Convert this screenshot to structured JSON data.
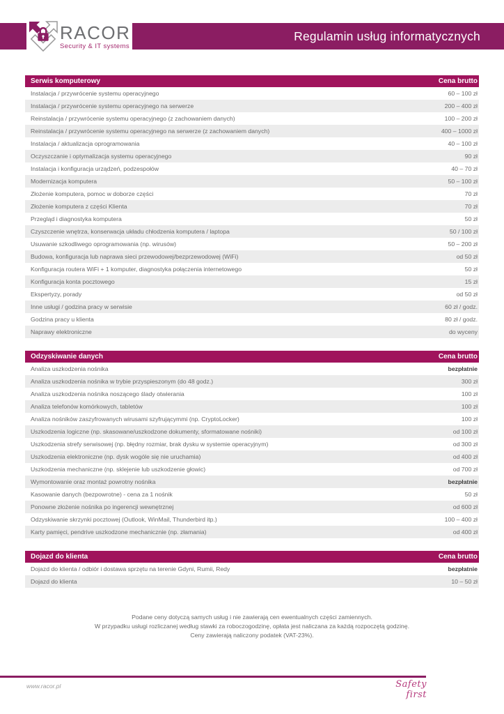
{
  "colors": {
    "header_bar": "#8b1d62",
    "table_header": "#a0135c",
    "row_alt": "#ececec"
  },
  "header": {
    "logo_text": "RACOR",
    "logo_subtitle": "Security & IT systems",
    "title": "Regulamin usług informatycznych"
  },
  "price_column_header": "Cena brutto",
  "sections": [
    {
      "title": "Serwis komputerowy",
      "rows": [
        {
          "label": "Instalacja / przywrócenie systemu operacyjnego",
          "price": "60 – 100 zł"
        },
        {
          "label": "Instalacja / przywrócenie systemu operacyjnego na serwerze",
          "price": "200 – 400 zł"
        },
        {
          "label": "Reinstalacja / przywrócenie systemu operacyjnego (z zachowaniem danych)",
          "price": "100 – 200 zł"
        },
        {
          "label": "Reinstalacja / przywrócenie systemu operacyjnego na serwerze (z zachowaniem danych)",
          "price": "400 – 1000 zł"
        },
        {
          "label": "Instalacja / aktualizacja oprogramowania",
          "price": "40 – 100 zł"
        },
        {
          "label": "Oczyszczanie i optymalizacja systemu operacyjnego",
          "price": "90 zł"
        },
        {
          "label": "Instalacja i konfiguracja urządzeń, podzespołów",
          "price": "40 – 70 zł"
        },
        {
          "label": "Modernizacja komputera",
          "price": "50 – 100 zł"
        },
        {
          "label": "Złożenie komputera, pomoc w doborze części",
          "price": "70 zł"
        },
        {
          "label": "Złożenie komputera z części Klienta",
          "price": "70 zł"
        },
        {
          "label": "Przegląd i diagnostyka komputera",
          "price": "50 zł"
        },
        {
          "label": "Czyszczenie wnętrza, konserwacja układu chłodzenia komputera / laptopa",
          "price": "50 / 100 zł"
        },
        {
          "label": "Usuwanie szkodliwego oprogramowania (np. wirusów)",
          "price": "50 – 200 zł"
        },
        {
          "label": "Budowa, konfiguracja lub naprawa sieci przewodowej/bezprzewodowej (WiFi)",
          "price": "od 50 zł"
        },
        {
          "label": "Konfiguracja routera WiFi + 1 komputer, diagnostyka połączenia internetowego",
          "price": "50 zł"
        },
        {
          "label": "Konfiguracja konta pocztowego",
          "price": "15 zł"
        },
        {
          "label": "Ekspertyzy, porady",
          "price": "od 50 zł"
        },
        {
          "label": "Inne usługi / godzina pracy w serwisie",
          "price": "60 zł / godz."
        },
        {
          "label": "Godzina pracy u klienta",
          "price": "80 zł / godz."
        },
        {
          "label": "Naprawy elektroniczne",
          "price": "do wyceny"
        }
      ]
    },
    {
      "title": "Odzyskiwanie danych",
      "rows": [
        {
          "label": "Analiza uszkodzenia nośnika",
          "price": "bezpłatnie",
          "strong": true
        },
        {
          "label": "Analiza uszkodzenia nośnika w trybie przyspieszonym (do 48 godz.)",
          "price": "300 zł"
        },
        {
          "label": "Analiza uszkodzenia nośnika noszącego ślady otwierania",
          "price": "100 zł"
        },
        {
          "label": "Analiza telefonów komórkowych, tabletów",
          "price": "100 zł"
        },
        {
          "label": "Analiza nośników zaszyfrowanych wirusami szyfrującymmi (np. CryptoLocker)",
          "price": "100 zł"
        },
        {
          "label": "Uszkodzenia logiczne (np. skasowane/uszkodzone dokumenty, sformatowane nośniki)",
          "price": "od 100 zł"
        },
        {
          "label": "Uszkodzenia strefy serwisowej (np. błędny rozmiar, brak dysku w systemie operacyjnym)",
          "price": "od 300 zł"
        },
        {
          "label": "Uszkodzenia elektroniczne (np. dysk wogóle się nie uruchamia)",
          "price": "od 400 zł"
        },
        {
          "label": "Uszkodzenia mechaniczne (np. sklejenie lub uszkodzenie głowic)",
          "price": "od 700 zł"
        },
        {
          "label": "Wymontowanie oraz montaż powrotny nośnika",
          "price": "bezpłatnie",
          "strong": true
        },
        {
          "label": "Kasowanie danych (bezpowrotne) - cena za 1 nośnik",
          "price": "50 zł"
        },
        {
          "label": "Ponowne złożenie nośnika po ingerencji wewnętrznej",
          "price": "od 600 zł"
        },
        {
          "label": "Odzyskiwanie skrzynki pocztowej (Outlook, WinMail, Thunderbird itp.)",
          "price": "100 – 400 zł"
        },
        {
          "label": "Karty pamięci, pendrive uszkodzone mechanicznie (np. złamania)",
          "price": "od 400 zł"
        }
      ]
    },
    {
      "title": "Dojazd do klienta",
      "rows": [
        {
          "label": "Dojazd do klienta / odbiór i dostawa sprzętu na terenie Gdyni, Rumii, Redy",
          "price": "bezpłatnie",
          "strong": true
        },
        {
          "label": "Dojazd do klienta",
          "price": "10 – 50 zł"
        }
      ]
    }
  ],
  "notes": [
    "Podane ceny dotyczą samych usług i nie zawierają cen ewentualnych części zamiennych.",
    "W przypadku usługi rozliczanej według stawki za roboczogodzinę, opłata jest naliczana za każdą rozpoczętą godzinę.",
    "Ceny zawierają naliczony podatek (VAT-23%)."
  ],
  "footer": {
    "url": "www.racor.pl",
    "slogan": "Safety first"
  }
}
